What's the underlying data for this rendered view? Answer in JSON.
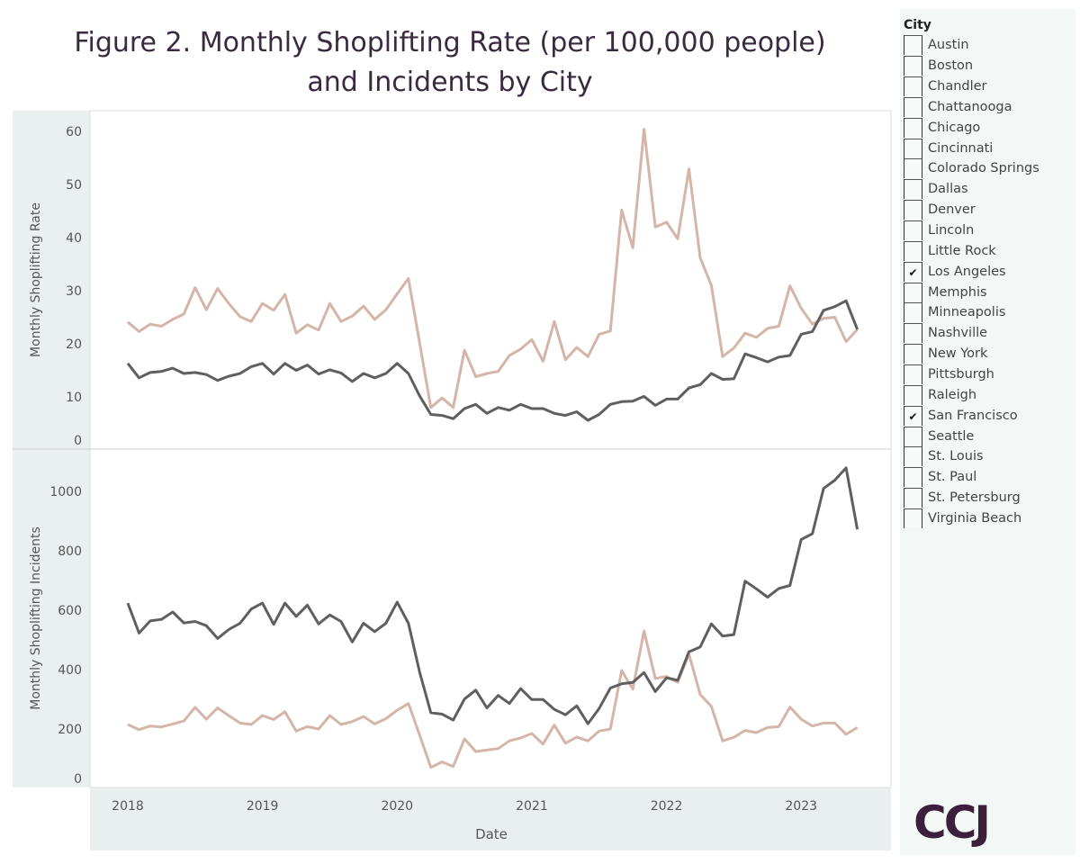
{
  "title": [
    "Figure 2. Monthly Shoplifting Rate (per 100,000 people)",
    "and Incidents by City"
  ],
  "logo_text": "CCJ",
  "legend": {
    "title": "City",
    "items": [
      {
        "label": "Austin",
        "checked": false
      },
      {
        "label": "Boston",
        "checked": false
      },
      {
        "label": "Chandler",
        "checked": false
      },
      {
        "label": "Chattanooga",
        "checked": false
      },
      {
        "label": "Chicago",
        "checked": false
      },
      {
        "label": "Cincinnati",
        "checked": false
      },
      {
        "label": "Colorado Springs",
        "checked": false
      },
      {
        "label": "Dallas",
        "checked": false
      },
      {
        "label": "Denver",
        "checked": false
      },
      {
        "label": "Lincoln",
        "checked": false
      },
      {
        "label": "Little Rock",
        "checked": false
      },
      {
        "label": "Los Angeles",
        "checked": true
      },
      {
        "label": "Memphis",
        "checked": false
      },
      {
        "label": "Minneapolis",
        "checked": false
      },
      {
        "label": "Nashville",
        "checked": false
      },
      {
        "label": "New York",
        "checked": false
      },
      {
        "label": "Pittsburgh",
        "checked": false
      },
      {
        "label": "Raleigh",
        "checked": false
      },
      {
        "label": "San Francisco",
        "checked": true
      },
      {
        "label": "Seattle",
        "checked": false
      },
      {
        "label": "St. Louis",
        "checked": false
      },
      {
        "label": "St. Paul",
        "checked": false
      },
      {
        "label": "St. Petersburg",
        "checked": false
      },
      {
        "label": "Virginia Beach",
        "checked": false
      }
    ],
    "check_glyph": "✔"
  },
  "chart_data": [
    {
      "type": "line",
      "xlabel": "Date",
      "ylabel": "Monthly Shoplifting Rate",
      "ylim": [
        0,
        62
      ],
      "yticks": [
        0,
        10,
        20,
        30,
        40,
        50,
        60
      ],
      "xticks": [
        "2018",
        "2019",
        "2020",
        "2021",
        "2022",
        "2023"
      ],
      "grid": false,
      "x": [
        "2018-01",
        "2018-02",
        "2018-03",
        "2018-04",
        "2018-05",
        "2018-06",
        "2018-07",
        "2018-08",
        "2018-09",
        "2018-10",
        "2018-11",
        "2018-12",
        "2019-01",
        "2019-02",
        "2019-03",
        "2019-04",
        "2019-05",
        "2019-06",
        "2019-07",
        "2019-08",
        "2019-09",
        "2019-10",
        "2019-11",
        "2019-12",
        "2020-01",
        "2020-02",
        "2020-03",
        "2020-04",
        "2020-05",
        "2020-06",
        "2020-07",
        "2020-08",
        "2020-09",
        "2020-10",
        "2020-11",
        "2020-12",
        "2021-01",
        "2021-02",
        "2021-03",
        "2021-04",
        "2021-05",
        "2021-06",
        "2021-07",
        "2021-08",
        "2021-09",
        "2021-10",
        "2021-11",
        "2021-12",
        "2022-01",
        "2022-02",
        "2022-03",
        "2022-04",
        "2022-05",
        "2022-06",
        "2022-07",
        "2022-08",
        "2022-09",
        "2022-10",
        "2022-11",
        "2022-12",
        "2023-01",
        "2023-02",
        "2023-03",
        "2023-04",
        "2023-05",
        "2023-06"
      ],
      "series": [
        {
          "color": "#d4b5a8",
          "values": [
            24.1,
            22.3,
            23.7,
            23.3,
            24.6,
            25.6,
            30.6,
            26.4,
            30.4,
            27.6,
            25.1,
            24.2,
            27.6,
            26.3,
            29.3,
            22.0,
            23.6,
            22.6,
            27.6,
            24.2,
            25.2,
            27.1,
            24.6,
            26.4,
            29.4,
            32.3,
            20.2,
            8.0,
            9.8,
            8.0,
            18.8,
            13.8,
            14.4,
            14.8,
            17.8,
            19.0,
            20.8,
            16.7,
            24.2,
            17.0,
            19.3,
            17.6,
            21.8,
            22.4,
            45.2,
            38.1,
            60.4,
            42.0,
            42.9,
            39.8,
            52.9,
            36.2,
            31.0,
            17.6,
            19.2,
            22.0,
            21.2,
            22.9,
            23.3,
            30.9,
            26.7,
            23.7,
            24.8,
            25.0,
            20.4,
            22.7
          ]
        },
        {
          "color": "#5f5f5f",
          "values": [
            16.3,
            13.6,
            14.6,
            14.8,
            15.4,
            14.4,
            14.6,
            14.2,
            13.1,
            13.9,
            14.4,
            15.7,
            16.3,
            14.3,
            16.3,
            15.0,
            16.0,
            14.3,
            15.1,
            14.5,
            12.9,
            14.4,
            13.6,
            14.4,
            16.3,
            14.4,
            10.2,
            6.7,
            6.5,
            5.9,
            7.8,
            8.6,
            6.9,
            8.0,
            7.5,
            8.6,
            7.8,
            7.8,
            6.9,
            6.5,
            7.2,
            5.6,
            6.7,
            8.6,
            9.1,
            9.2,
            10.1,
            8.4,
            9.6,
            9.6,
            11.7,
            12.3,
            14.4,
            13.3,
            13.4,
            18.1,
            17.4,
            16.6,
            17.5,
            17.8,
            21.8,
            22.3,
            26.3,
            27.0,
            28.1,
            22.7
          ]
        }
      ]
    },
    {
      "type": "line",
      "xlabel": "Date",
      "ylabel": "Monthly Shoplifting Incidents",
      "ylim": [
        0,
        1130
      ],
      "yticks": [
        0,
        200,
        400,
        600,
        800,
        1000
      ],
      "xticks": [
        "2018",
        "2019",
        "2020",
        "2021",
        "2022",
        "2023"
      ],
      "grid": false,
      "series": [
        {
          "color": "#d4b5a8",
          "values": [
            215,
            198,
            210,
            207,
            217,
            227,
            273,
            233,
            271,
            245,
            220,
            215,
            245,
            232,
            258,
            193,
            208,
            200,
            245,
            215,
            225,
            242,
            217,
            235,
            263,
            286,
            180,
            71,
            89,
            74,
            167,
            124,
            129,
            134,
            160,
            170,
            185,
            149,
            213,
            152,
            173,
            160,
            193,
            200,
            397,
            334,
            530,
            370,
            377,
            357,
            452,
            316,
            276,
            160,
            172,
            195,
            188,
            205,
            208,
            274,
            233,
            210,
            220,
            220,
            182,
            205
          ]
        },
        {
          "color": "#5f5f5f",
          "values": [
            624,
            523,
            564,
            569,
            594,
            557,
            562,
            548,
            505,
            535,
            556,
            604,
            624,
            552,
            624,
            579,
            617,
            554,
            584,
            562,
            493,
            556,
            528,
            556,
            627,
            556,
            392,
            255,
            250,
            230,
            301,
            331,
            271,
            313,
            286,
            336,
            299,
            299,
            266,
            248,
            278,
            218,
            269,
            338,
            352,
            357,
            390,
            326,
            372,
            364,
            460,
            476,
            554,
            513,
            518,
            698,
            672,
            644,
            673,
            683,
            838,
            858,
            1010,
            1038,
            1079,
            872
          ]
        }
      ]
    }
  ]
}
